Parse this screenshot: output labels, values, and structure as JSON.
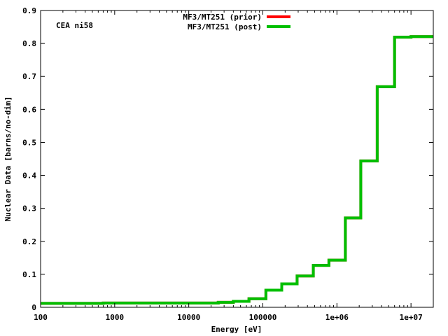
{
  "chart_data": {
    "type": "line",
    "title": "",
    "annotation": "CEA ni58",
    "xlabel": "Energy [eV]",
    "ylabel": "Nuclear Data [barns/no-dim]",
    "xscale": "log",
    "xlim": [
      100,
      20000000
    ],
    "ylim": [
      0,
      0.9
    ],
    "x_ticks": [
      100,
      1000,
      10000,
      100000,
      1000000,
      10000000
    ],
    "x_tick_labels": [
      "100",
      "1000",
      "10000",
      "100000",
      "1e+06",
      "1e+07"
    ],
    "y_ticks": [
      0,
      0.1,
      0.2,
      0.3,
      0.4,
      0.5,
      0.6,
      0.7,
      0.8,
      0.9
    ],
    "y_tick_labels": [
      "0",
      "0.1",
      "0.2",
      "0.3",
      "0.4",
      "0.5",
      "0.6",
      "0.7",
      "0.8",
      "0.9"
    ],
    "grid": false,
    "legend_position": "top-center",
    "series": [
      {
        "name": "MF3/MT251 (prior)",
        "color": "#ff0000",
        "style": "step",
        "x": [
          100,
          700,
          25000,
          40000,
          65000,
          110000,
          180000,
          290000,
          480000,
          780000,
          1300000,
          2100000,
          3500000,
          6000000,
          10000000,
          20000000
        ],
        "y": [
          0.012,
          0.013,
          0.015,
          0.018,
          0.026,
          0.052,
          0.071,
          0.095,
          0.127,
          0.143,
          0.271,
          0.444,
          0.669,
          0.819,
          0.821,
          0.821
        ]
      },
      {
        "name": "MF3/MT251 (post)",
        "color": "#00bf00",
        "style": "step",
        "x": [
          100,
          700,
          25000,
          40000,
          65000,
          110000,
          180000,
          290000,
          480000,
          780000,
          1300000,
          2100000,
          3500000,
          6000000,
          10000000,
          20000000
        ],
        "y": [
          0.012,
          0.013,
          0.015,
          0.018,
          0.026,
          0.052,
          0.071,
          0.095,
          0.127,
          0.143,
          0.271,
          0.444,
          0.669,
          0.819,
          0.821,
          0.821
        ]
      }
    ]
  }
}
